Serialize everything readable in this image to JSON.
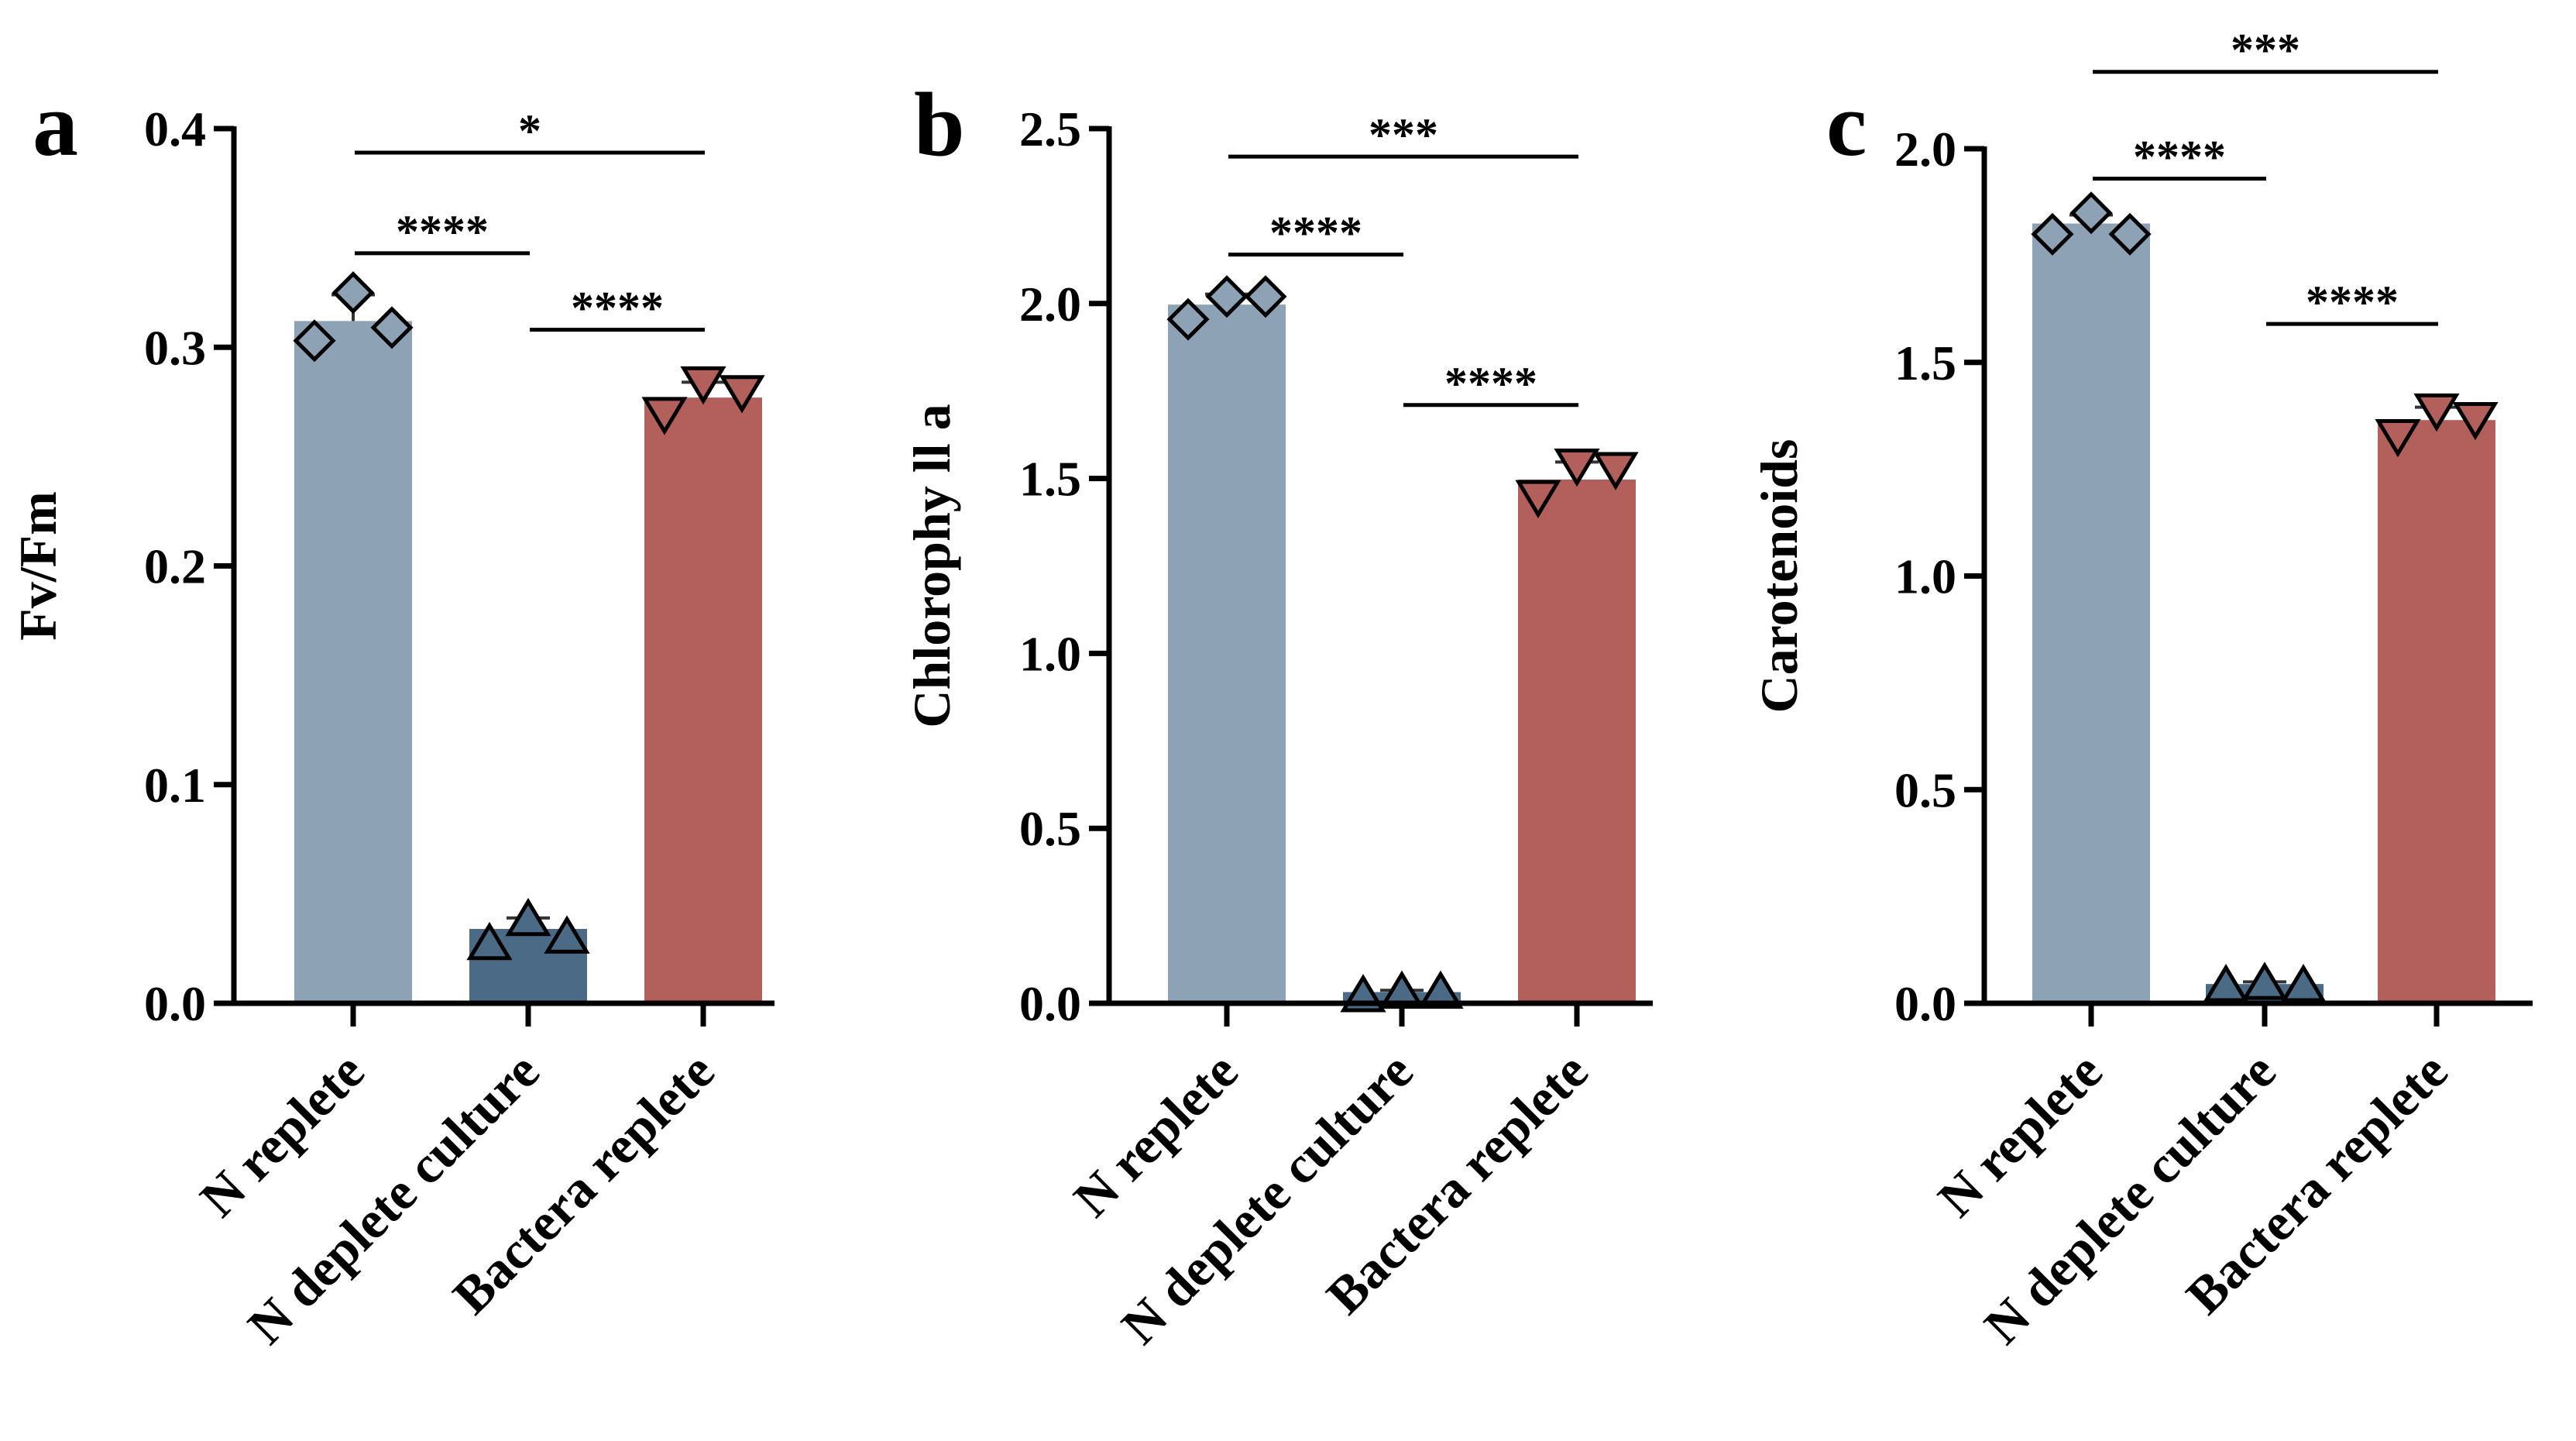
{
  "colors": {
    "n_replete": "#8ea2b6",
    "n_deplete": "#4a6a86",
    "bacteria_replete": "#b3605c",
    "marker_edge": "#000000",
    "axis": "#000000"
  },
  "chart_data": [
    {
      "type": "bar",
      "panel": "a",
      "categories": [
        "N replete",
        "N deplete culture",
        "Bactera replete"
      ],
      "values": [
        0.312,
        0.034,
        0.277
      ],
      "errors": [
        0.012,
        0.005,
        0.007
      ],
      "points": [
        [
          0.303,
          0.325,
          0.309
        ],
        [
          0.027,
          0.038,
          0.03
        ],
        [
          0.27,
          0.284,
          0.28
        ]
      ],
      "markers": [
        "diamond",
        "triangle-up",
        "triangle-down"
      ],
      "ylabel": "Fv/Fm",
      "ylim": [
        0,
        0.4
      ],
      "yticks": [
        "0.0",
        "0.1",
        "0.2",
        "0.3",
        "0.4"
      ],
      "significance": [
        {
          "from": 0,
          "to": 1,
          "label": "****",
          "y": 0.343
        },
        {
          "from": 1,
          "to": 2,
          "label": "****",
          "y": 0.308
        },
        {
          "from": 0,
          "to": 2,
          "label": "*",
          "y": 0.389
        }
      ]
    },
    {
      "type": "bar",
      "panel": "b",
      "categories": [
        "N replete",
        "N deplete culture",
        "Bactera replete"
      ],
      "values": [
        1.997,
        0.032,
        1.497
      ],
      "errors": [
        0.03,
        0.005,
        0.05
      ],
      "points": [
        [
          1.955,
          2.02,
          2.02
        ],
        [
          0.02,
          0.03,
          0.03
        ],
        [
          1.45,
          1.54,
          1.53
        ]
      ],
      "markers": [
        "diamond",
        "triangle-up",
        "triangle-down"
      ],
      "ylabel": "Chlorophy ll a",
      "ylim": [
        0,
        2.5
      ],
      "yticks": [
        "0.0",
        "0.5",
        "1.0",
        "1.5",
        "2.0",
        "2.5"
      ],
      "significance": [
        {
          "from": 0,
          "to": 1,
          "label": "****",
          "y": 2.14
        },
        {
          "from": 1,
          "to": 2,
          "label": "****",
          "y": 1.71
        },
        {
          "from": 0,
          "to": 2,
          "label": "***",
          "y": 2.42
        }
      ]
    },
    {
      "type": "bar",
      "panel": "c",
      "categories": [
        "N replete",
        "N deplete culture",
        "Bactera replete"
      ],
      "values": [
        1.825,
        0.045,
        1.365
      ],
      "errors": [
        0.02,
        0.005,
        0.03
      ],
      "points": [
        [
          1.8,
          1.85,
          1.8
        ],
        [
          0.04,
          0.045,
          0.04
        ],
        [
          1.33,
          1.39,
          1.37
        ]
      ],
      "markers": [
        "diamond",
        "triangle-up",
        "triangle-down"
      ],
      "ylabel": "Carotenoids",
      "ylim": [
        0,
        2.0
      ],
      "yticks": [
        "0.0",
        "0.5",
        "1.0",
        "1.5",
        "2.0"
      ],
      "significance": [
        {
          "from": 0,
          "to": 1,
          "label": "****",
          "y": 1.93
        },
        {
          "from": 1,
          "to": 2,
          "label": "****",
          "y": 1.59
        },
        {
          "from": 0,
          "to": 2,
          "label": "***",
          "y": 2.18
        }
      ]
    }
  ]
}
